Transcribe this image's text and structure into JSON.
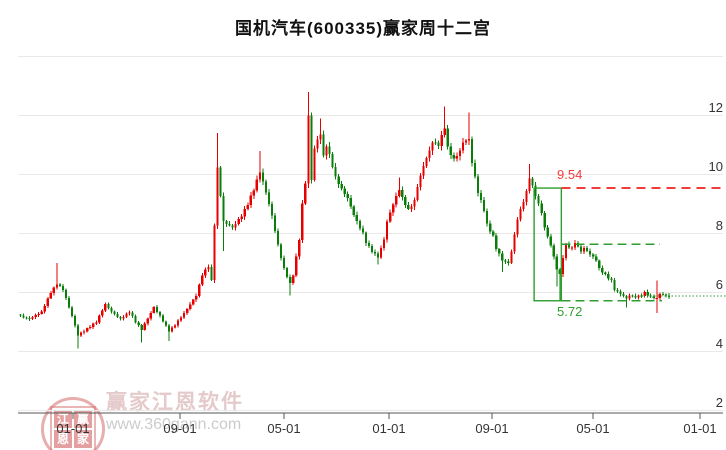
{
  "title": "国机汽车(600335)赢家周十二宫",
  "watermark": {
    "brand": "赢家江恩软件",
    "url": "www.360gann.com",
    "seal_chars": [
      "江",
      "赢",
      "恩",
      "家"
    ]
  },
  "axes": {
    "y_tick_labels": [
      "12",
      "10",
      "8",
      "6",
      "4",
      "2"
    ],
    "y_tick_values": [
      12,
      10,
      8,
      6,
      4,
      2
    ],
    "y_grid_values": [
      14,
      12,
      10,
      8,
      6,
      4,
      2
    ],
    "x_tick_labels": [
      "01-01",
      "09-01",
      "05-01",
      "01-01",
      "09-01",
      "05-01",
      "01-01"
    ]
  },
  "gann": {
    "high_label": "9.54",
    "low_label": "5.72",
    "high": 9.54,
    "low": 5.72,
    "mid": 7.63,
    "dotted_level": 5.88,
    "box_start_index": 170,
    "box_end_index": 178
  },
  "colors": {
    "up_candle": "#e60000",
    "down_candle": "#0a7d0a",
    "gann_red_line": "#f23b3b",
    "gann_green": "#2e9e2e",
    "grid": "#e9e9e9",
    "axis": "#555555",
    "text": "#333333"
  },
  "chart_data": {
    "type": "candlestick",
    "period": "weekly",
    "title": "国机汽车(600335)赢家周十二宫",
    "ylim": [
      2,
      14
    ],
    "num_candles": 215,
    "x_tick_labels": [
      "01-01",
      "09-01",
      "05-01",
      "01-01",
      "09-01",
      "05-01",
      "01-01"
    ],
    "convention": "china: red = up week, green = down week",
    "key_levels": {
      "gann_high": 9.54,
      "gann_low": 5.72,
      "gann_mid": 7.63
    },
    "close_anchors": [
      [
        0,
        5.2
      ],
      [
        3,
        5.1
      ],
      [
        7,
        5.35
      ],
      [
        10,
        6.0
      ],
      [
        12,
        6.3
      ],
      [
        14,
        6.1
      ],
      [
        17,
        5.2
      ],
      [
        19,
        4.55
      ],
      [
        21,
        4.7
      ],
      [
        25,
        5.0
      ],
      [
        28,
        5.6
      ],
      [
        30,
        5.35
      ],
      [
        33,
        5.1
      ],
      [
        36,
        5.35
      ],
      [
        38,
        5.0
      ],
      [
        40,
        4.75
      ],
      [
        44,
        5.5
      ],
      [
        46,
        5.2
      ],
      [
        49,
        4.7
      ],
      [
        51,
        4.9
      ],
      [
        54,
        5.3
      ],
      [
        58,
        5.9
      ],
      [
        60,
        6.6
      ],
      [
        62,
        6.9
      ],
      [
        63,
        6.4
      ],
      [
        64,
        8.3
      ],
      [
        65,
        10.2
      ],
      [
        66,
        9.3
      ],
      [
        67,
        8.4
      ],
      [
        70,
        8.2
      ],
      [
        73,
        8.6
      ],
      [
        75,
        9.0
      ],
      [
        77,
        9.5
      ],
      [
        79,
        10.1
      ],
      [
        81,
        9.4
      ],
      [
        83,
        8.6
      ],
      [
        85,
        7.6
      ],
      [
        87,
        6.8
      ],
      [
        89,
        6.3
      ],
      [
        90,
        6.6
      ],
      [
        92,
        7.8
      ],
      [
        93,
        9.0
      ],
      [
        94,
        9.7
      ],
      [
        95,
        12.0
      ],
      [
        96,
        9.8
      ],
      [
        97,
        10.9
      ],
      [
        99,
        11.4
      ],
      [
        100,
        10.6
      ],
      [
        101,
        11.0
      ],
      [
        103,
        10.3
      ],
      [
        104,
        9.9
      ],
      [
        106,
        9.5
      ],
      [
        108,
        9.2
      ],
      [
        109,
        8.9
      ],
      [
        111,
        8.4
      ],
      [
        113,
        8.0
      ],
      [
        114,
        7.7
      ],
      [
        116,
        7.4
      ],
      [
        118,
        7.2
      ],
      [
        120,
        7.8
      ],
      [
        121,
        8.4
      ],
      [
        123,
        9.0
      ],
      [
        125,
        9.5
      ],
      [
        126,
        9.2
      ],
      [
        128,
        8.8
      ],
      [
        130,
        9.1
      ],
      [
        131,
        9.6
      ],
      [
        133,
        10.3
      ],
      [
        135,
        10.8
      ],
      [
        136,
        11.1
      ],
      [
        138,
        11.0
      ],
      [
        140,
        11.6
      ],
      [
        141,
        10.9
      ],
      [
        143,
        10.5
      ],
      [
        145,
        10.8
      ],
      [
        146,
        11.1
      ],
      [
        148,
        11.2
      ],
      [
        149,
        10.4
      ],
      [
        151,
        9.4
      ],
      [
        153,
        8.8
      ],
      [
        154,
        8.3
      ],
      [
        156,
        7.9
      ],
      [
        157,
        7.5
      ],
      [
        159,
        7.1
      ],
      [
        161,
        7.0
      ],
      [
        162,
        7.4
      ],
      [
        164,
        8.5
      ],
      [
        166,
        9.1
      ],
      [
        167,
        9.4
      ],
      [
        168,
        9.9
      ],
      [
        170,
        9.3
      ],
      [
        172,
        8.7
      ],
      [
        173,
        8.2
      ],
      [
        175,
        7.6
      ],
      [
        177,
        6.8
      ],
      [
        178,
        6.6
      ],
      [
        179,
        7.2
      ],
      [
        180,
        7.6
      ],
      [
        182,
        7.5
      ],
      [
        183,
        7.7
      ],
      [
        185,
        7.4
      ],
      [
        186,
        7.5
      ],
      [
        188,
        7.3
      ],
      [
        190,
        7.1
      ],
      [
        191,
        6.8
      ],
      [
        193,
        6.6
      ],
      [
        195,
        6.4
      ],
      [
        196,
        6.1
      ],
      [
        198,
        5.95
      ],
      [
        200,
        5.8
      ],
      [
        201,
        5.9
      ],
      [
        203,
        5.85
      ],
      [
        205,
        5.9
      ],
      [
        206,
        6.0
      ],
      [
        208,
        5.85
      ],
      [
        210,
        5.8
      ],
      [
        211,
        5.95
      ],
      [
        213,
        5.9
      ],
      [
        214,
        5.85
      ]
    ],
    "wick_overrides": [
      [
        12,
        "h",
        7.0
      ],
      [
        19,
        "l",
        4.1
      ],
      [
        40,
        "l",
        4.3
      ],
      [
        49,
        "l",
        4.35
      ],
      [
        65,
        "h",
        11.4
      ],
      [
        67,
        "l",
        7.4
      ],
      [
        79,
        "h",
        10.8
      ],
      [
        89,
        "l",
        5.9
      ],
      [
        95,
        "h",
        12.8
      ],
      [
        99,
        "h",
        11.9
      ],
      [
        118,
        "l",
        6.95
      ],
      [
        125,
        "h",
        9.9
      ],
      [
        140,
        "h",
        12.3
      ],
      [
        148,
        "h",
        12.1
      ],
      [
        159,
        "l",
        6.7
      ],
      [
        168,
        "h",
        10.35
      ],
      [
        177,
        "l",
        6.2
      ],
      [
        178,
        "l",
        5.72
      ],
      [
        200,
        "l",
        5.5
      ],
      [
        210,
        "h",
        6.4
      ],
      [
        210,
        "l",
        5.3
      ]
    ]
  }
}
